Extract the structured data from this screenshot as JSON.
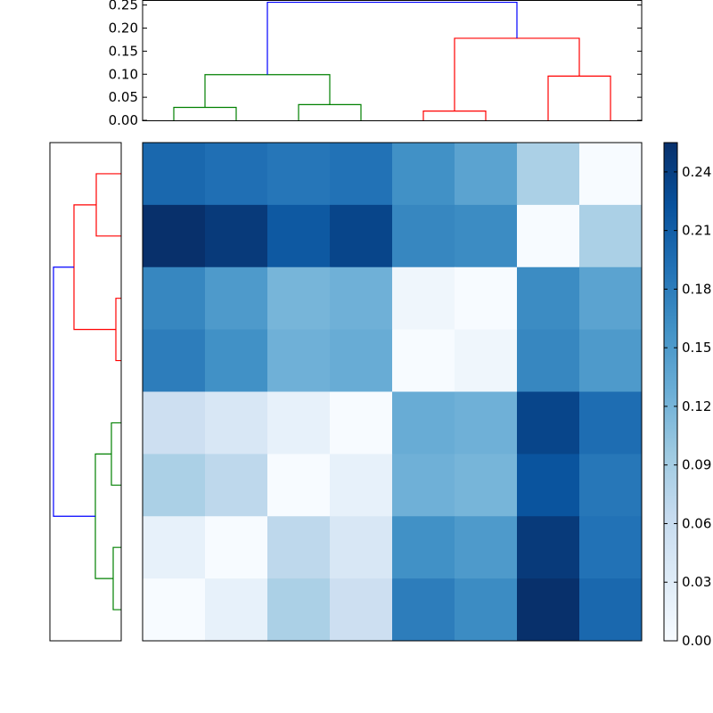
{
  "chart_data": [
    {
      "type": "heatmap",
      "title": "",
      "xlabel": "",
      "ylabel": "",
      "colormap": "Blues",
      "vmin": 0.0,
      "vmax": 0.255,
      "rows": 8,
      "cols": 8,
      "values": [
        [
          0.2,
          0.193,
          0.186,
          0.19,
          0.16,
          0.14,
          0.085,
          0.0
        ],
        [
          0.255,
          0.245,
          0.215,
          0.235,
          0.17,
          0.165,
          0.0,
          0.085
        ],
        [
          0.17,
          0.15,
          0.12,
          0.125,
          0.01,
          0.0,
          0.165,
          0.14
        ],
        [
          0.18,
          0.16,
          0.125,
          0.13,
          0.0,
          0.01,
          0.17,
          0.15
        ],
        [
          0.055,
          0.04,
          0.02,
          0.0,
          0.13,
          0.125,
          0.235,
          0.195
        ],
        [
          0.085,
          0.07,
          0.0,
          0.02,
          0.125,
          0.12,
          0.22,
          0.185
        ],
        [
          0.02,
          0.0,
          0.07,
          0.04,
          0.16,
          0.15,
          0.245,
          0.19
        ],
        [
          0.0,
          0.02,
          0.085,
          0.055,
          0.18,
          0.165,
          0.255,
          0.2
        ]
      ]
    },
    {
      "type": "dendrogram",
      "orientation": "top",
      "ylim": [
        0.0,
        0.26
      ],
      "yticks": [
        0.0,
        0.05,
        0.1,
        0.15,
        0.2,
        0.25
      ],
      "yticklabels": [
        "0.00",
        "0.05",
        "0.10",
        "0.15",
        "0.20",
        "0.25"
      ],
      "links": [
        {
          "left": 0.5,
          "right": 1.5,
          "left_height": 0.0,
          "right_height": 0.0,
          "height": 0.028,
          "color": "#008000"
        },
        {
          "left": 2.5,
          "right": 3.5,
          "left_height": 0.0,
          "right_height": 0.0,
          "height": 0.034,
          "color": "#008000"
        },
        {
          "left": 1.0,
          "right": 3.0,
          "left_height": 0.028,
          "right_height": 0.034,
          "height": 0.099,
          "color": "#008000"
        },
        {
          "left": 4.5,
          "right": 5.5,
          "left_height": 0.0,
          "right_height": 0.0,
          "height": 0.02,
          "color": "#ff0000"
        },
        {
          "left": 6.5,
          "right": 7.5,
          "left_height": 0.0,
          "right_height": 0.0,
          "height": 0.096,
          "color": "#ff0000"
        },
        {
          "left": 5.0,
          "right": 7.0,
          "left_height": 0.02,
          "right_height": 0.096,
          "height": 0.178,
          "color": "#ff0000"
        },
        {
          "left": 2.0,
          "right": 6.0,
          "left_height": 0.099,
          "right_height": 0.178,
          "height": 0.256,
          "color": "#0000ff"
        }
      ]
    },
    {
      "type": "dendrogram",
      "orientation": "left",
      "links": [
        {
          "a": 0.5,
          "b": 1.5,
          "a_height": 0.0,
          "b_height": 0.0,
          "height": 0.028,
          "color": "#ff0000"
        },
        {
          "a": 2.5,
          "b": 3.5,
          "a_height": 0.0,
          "b_height": 0.0,
          "height": 0.006,
          "color": "#ff0000"
        },
        {
          "a": 1.0,
          "b": 3.0,
          "a_height": 0.028,
          "b_height": 0.006,
          "height": 0.053,
          "color": "#ff0000"
        },
        {
          "a": 4.5,
          "b": 5.5,
          "a_height": 0.0,
          "b_height": 0.0,
          "height": 0.011,
          "color": "#008000"
        },
        {
          "a": 6.5,
          "b": 7.5,
          "a_height": 0.0,
          "b_height": 0.0,
          "height": 0.009,
          "color": "#008000"
        },
        {
          "a": 5.0,
          "b": 7.0,
          "a_height": 0.011,
          "b_height": 0.009,
          "height": 0.029,
          "color": "#008000"
        },
        {
          "a": 2.0,
          "b": 6.0,
          "a_height": 0.053,
          "b_height": 0.029,
          "height": 0.076,
          "color": "#0000ff"
        }
      ],
      "max_height": 0.076
    },
    {
      "type": "colorbar",
      "vmin": 0.0,
      "vmax": 0.255,
      "ticks": [
        0.0,
        0.03,
        0.06,
        0.09,
        0.12,
        0.15,
        0.18,
        0.21,
        0.24
      ],
      "ticklabels": [
        "0.00",
        "0.03",
        "0.06",
        "0.09",
        "0.12",
        "0.15",
        "0.18",
        "0.21",
        "0.24"
      ]
    }
  ]
}
